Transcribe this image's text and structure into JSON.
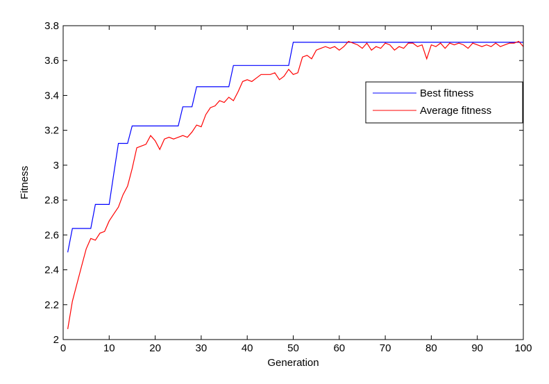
{
  "chart_data": {
    "type": "line",
    "title": "",
    "xlabel": "Generation",
    "ylabel": "Fitness",
    "xlim": [
      0,
      100
    ],
    "ylim": [
      2,
      3.8
    ],
    "xticks": [
      0,
      10,
      20,
      30,
      40,
      50,
      60,
      70,
      80,
      90,
      100
    ],
    "yticks": [
      2,
      2.2,
      2.4,
      2.6,
      2.8,
      3,
      3.2,
      3.4,
      3.6,
      3.8
    ],
    "ytick_labels": [
      "2",
      "2.2",
      "2.4",
      "2.6",
      "2.8",
      "3",
      "3.2",
      "3.4",
      "3.6",
      "3.8"
    ],
    "grid": false,
    "legend_position": "right",
    "series": [
      {
        "name": "Best fitness",
        "color": "#0000ff",
        "x": [
          1,
          2,
          6,
          7,
          10,
          11,
          12,
          14,
          15,
          25,
          26,
          28,
          29,
          36,
          37,
          49,
          50,
          100
        ],
        "y": [
          2.5,
          2.637,
          2.637,
          2.775,
          2.775,
          2.95,
          3.125,
          3.125,
          3.225,
          3.225,
          3.335,
          3.335,
          3.45,
          3.45,
          3.572,
          3.572,
          3.705,
          3.705
        ]
      },
      {
        "name": "Average fitness",
        "color": "#ff0000",
        "x": [
          1,
          2,
          3,
          4,
          5,
          6,
          7,
          8,
          9,
          10,
          11,
          12,
          13,
          14,
          15,
          16,
          17,
          18,
          19,
          20,
          21,
          22,
          23,
          24,
          25,
          26,
          27,
          28,
          29,
          30,
          31,
          32,
          33,
          34,
          35,
          36,
          37,
          38,
          39,
          40,
          41,
          42,
          43,
          44,
          45,
          46,
          47,
          48,
          49,
          50,
          51,
          52,
          53,
          54,
          55,
          56,
          57,
          58,
          59,
          60,
          61,
          62,
          63,
          64,
          65,
          66,
          67,
          68,
          69,
          70,
          71,
          72,
          73,
          74,
          75,
          76,
          77,
          78,
          79,
          80,
          81,
          82,
          83,
          84,
          85,
          86,
          87,
          88,
          89,
          90,
          91,
          92,
          93,
          94,
          95,
          96,
          97,
          98,
          99,
          100
        ],
        "y": [
          2.06,
          2.22,
          2.32,
          2.42,
          2.52,
          2.58,
          2.57,
          2.61,
          2.62,
          2.68,
          2.72,
          2.76,
          2.83,
          2.88,
          2.98,
          3.1,
          3.11,
          3.12,
          3.17,
          3.14,
          3.09,
          3.15,
          3.16,
          3.15,
          3.16,
          3.17,
          3.16,
          3.19,
          3.23,
          3.22,
          3.29,
          3.33,
          3.34,
          3.37,
          3.36,
          3.39,
          3.37,
          3.42,
          3.48,
          3.49,
          3.48,
          3.5,
          3.52,
          3.52,
          3.52,
          3.53,
          3.49,
          3.51,
          3.55,
          3.52,
          3.53,
          3.62,
          3.63,
          3.61,
          3.66,
          3.67,
          3.68,
          3.67,
          3.68,
          3.66,
          3.68,
          3.71,
          3.7,
          3.69,
          3.67,
          3.7,
          3.66,
          3.68,
          3.67,
          3.7,
          3.69,
          3.66,
          3.68,
          3.67,
          3.7,
          3.7,
          3.68,
          3.69,
          3.61,
          3.69,
          3.68,
          3.7,
          3.67,
          3.7,
          3.69,
          3.7,
          3.69,
          3.67,
          3.7,
          3.69,
          3.68,
          3.69,
          3.68,
          3.7,
          3.68,
          3.69,
          3.7,
          3.7,
          3.71,
          3.68
        ]
      }
    ]
  }
}
